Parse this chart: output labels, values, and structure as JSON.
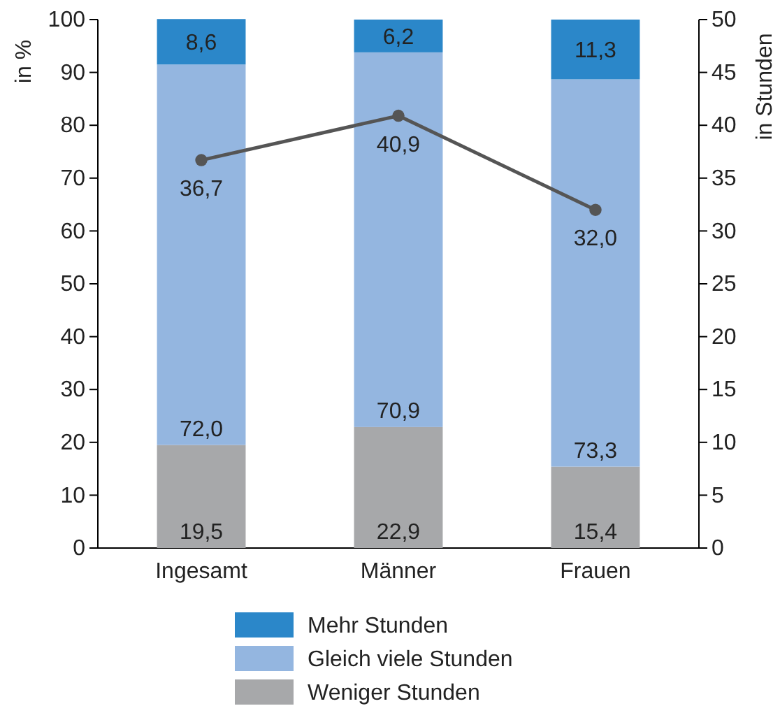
{
  "chart_data": {
    "type": "bar",
    "stacked": true,
    "categories": [
      "Ingesamt",
      "Männer",
      "Frauen"
    ],
    "ylabel": "in %",
    "y2label": "in Stunden",
    "ylim": [
      0,
      100
    ],
    "yticks": [
      0,
      10,
      20,
      30,
      40,
      50,
      60,
      70,
      80,
      90,
      100
    ],
    "y2lim": [
      0,
      50
    ],
    "y2ticks": [
      0,
      5,
      10,
      15,
      20,
      25,
      30,
      35,
      40,
      45,
      50
    ],
    "legend": "bottom",
    "grid": false,
    "series": [
      {
        "name": "Weniger Stunden",
        "color": "#a7a8aa",
        "values": [
          19.5,
          22.9,
          15.4
        ],
        "value_labels": [
          "19,5",
          "22,9",
          "15,4"
        ]
      },
      {
        "name": "Gleich viele Stunden",
        "color": "#94b6e0",
        "values": [
          72.0,
          70.9,
          73.3
        ],
        "value_labels": [
          "72,0",
          "70,9",
          "73,3"
        ]
      },
      {
        "name": "Mehr Stunden",
        "color": "#2b87c9",
        "values": [
          8.6,
          6.2,
          11.3
        ],
        "value_labels": [
          "8,6",
          "6,2",
          "11,3"
        ]
      },
      {
        "type": "line",
        "axis": "y2",
        "color": "#555555",
        "marker": "circle",
        "values": [
          36.7,
          40.9,
          32.0
        ],
        "value_labels": [
          "36,7",
          "40,9",
          "32,0"
        ]
      }
    ]
  }
}
